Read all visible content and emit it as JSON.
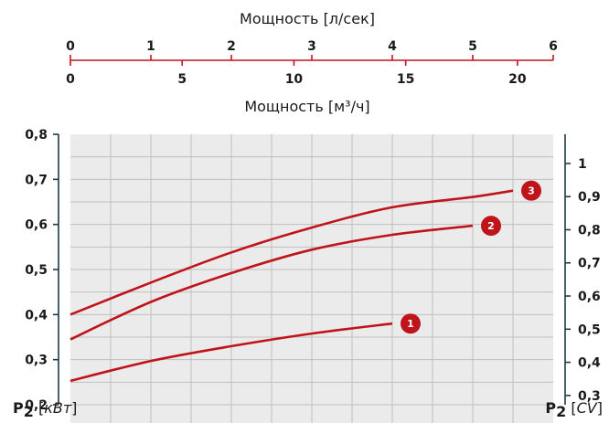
{
  "chart_data": {
    "type": "line",
    "top_axes": [
      {
        "label": "Мощность [л/сек]",
        "ticks": [
          "0",
          "1",
          "2",
          "3",
          "4",
          "5",
          "6"
        ],
        "range": [
          0,
          6
        ]
      },
      {
        "label": "Мощность [м³/ч]",
        "ticks": [
          "0",
          "5",
          "10",
          "15",
          "20"
        ],
        "range": [
          0,
          21.6
        ]
      }
    ],
    "y_left": {
      "label_main": "P",
      "label_sub": "2",
      "label_unit": "кВт",
      "ticks": [
        "0,2",
        "0,3",
        "0,4",
        "0,5",
        "0,6",
        "0,7",
        "0,8"
      ],
      "range": [
        0.2,
        0.8
      ]
    },
    "y_right": {
      "label_main": "P",
      "label_sub": "2",
      "label_unit": "CV",
      "ticks": [
        "0,3",
        "0,4",
        "0,5",
        "0,6",
        "0,7",
        "0,8",
        "0,9",
        "1"
      ],
      "range": [
        0.272,
        1.088
      ]
    },
    "grid": true,
    "series": [
      {
        "name": "1",
        "x": [
          0,
          1,
          2,
          3,
          4
        ],
        "y": [
          0.253,
          0.297,
          0.33,
          0.358,
          0.38
        ]
      },
      {
        "name": "2",
        "x": [
          0,
          1,
          2,
          3,
          4,
          5
        ],
        "y": [
          0.345,
          0.428,
          0.492,
          0.544,
          0.577,
          0.597
        ]
      },
      {
        "name": "3",
        "x": [
          0,
          1,
          2,
          3,
          4,
          5,
          5.5
        ],
        "y": [
          0.4,
          0.471,
          0.538,
          0.593,
          0.638,
          0.661,
          0.675
        ]
      }
    ],
    "colors": {
      "curve": "#c0141b",
      "axis_top": "#c0141b",
      "axis_side": "#1e3a4a",
      "grid_fill": "#ebebeb"
    }
  }
}
